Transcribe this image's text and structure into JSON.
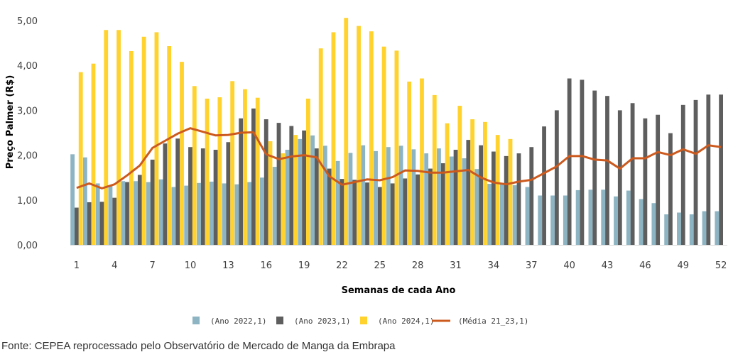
{
  "chart_data": {
    "type": "bar",
    "xlabel": "Semanas de cada Ano",
    "ylabel": "Preço Palmer (R$)",
    "ylim": [
      0,
      5
    ],
    "yticks": [
      "0,00",
      "1,00",
      "2,00",
      "3,00",
      "4,00",
      "5,00"
    ],
    "xticks": [
      "1",
      "4",
      "7",
      "10",
      "13",
      "16",
      "19",
      "22",
      "25",
      "28",
      "31",
      "34",
      "37",
      "40",
      "43",
      "46",
      "49",
      "52"
    ],
    "grid": false,
    "legend_position": "bottom",
    "colors": {
      "Ano 2022": "#8db4c2",
      "Ano 2023": "#5e5e5e",
      "Ano 2024": "#ffd22e",
      "Media": "#cc5a1e"
    },
    "x": [
      1,
      2,
      3,
      4,
      5,
      6,
      7,
      8,
      9,
      10,
      11,
      12,
      13,
      14,
      15,
      16,
      17,
      18,
      19,
      20,
      21,
      22,
      23,
      24,
      25,
      26,
      27,
      28,
      29,
      30,
      31,
      32,
      33,
      34,
      35,
      36,
      37,
      38,
      39,
      40,
      41,
      42,
      43,
      44,
      45,
      46,
      47,
      48,
      49,
      50,
      51,
      52
    ],
    "series": [
      {
        "name": "(Ano 2022,1)",
        "type": "bar",
        "values": [
          2.02,
          1.95,
          1.37,
          1.33,
          1.42,
          1.42,
          1.4,
          1.46,
          1.29,
          1.32,
          1.38,
          1.41,
          1.37,
          1.35,
          1.4,
          1.5,
          1.74,
          2.12,
          2.36,
          2.44,
          2.21,
          1.87,
          2.05,
          2.22,
          2.09,
          2.18,
          2.21,
          2.13,
          2.04,
          2.15,
          1.97,
          1.93,
          1.69,
          1.36,
          1.37,
          1.33,
          1.29,
          1.1,
          1.1,
          1.1,
          1.22,
          1.23,
          1.23,
          1.08,
          1.21,
          1.02,
          0.93,
          0.68,
          0.72,
          0.68,
          0.75,
          0.75
        ]
      },
      {
        "name": "(Ano 2023,1)",
        "type": "bar",
        "values": [
          0.83,
          0.95,
          0.96,
          1.05,
          1.4,
          1.56,
          1.9,
          2.26,
          2.37,
          2.18,
          2.15,
          2.12,
          2.29,
          2.82,
          3.04,
          2.8,
          2.72,
          2.65,
          2.55,
          2.15,
          1.7,
          1.47,
          1.45,
          1.39,
          1.29,
          1.37,
          1.48,
          1.57,
          1.7,
          1.82,
          2.12,
          2.34,
          2.22,
          2.08,
          1.98,
          2.04,
          2.18,
          2.64,
          3.0,
          3.71,
          3.68,
          3.44,
          3.32,
          3.0,
          3.16,
          2.82,
          2.9,
          2.49,
          3.12,
          3.23,
          3.35,
          3.35
        ]
      },
      {
        "name": "(Ano 2024,1)",
        "type": "bar",
        "values": [
          3.85,
          4.04,
          4.79,
          4.79,
          4.32,
          4.64,
          4.74,
          4.43,
          4.08,
          3.54,
          3.26,
          3.29,
          3.65,
          3.47,
          3.28,
          2.31,
          2.04,
          2.45,
          3.26,
          4.38,
          4.74,
          5.06,
          4.88,
          4.76,
          4.42,
          4.33,
          3.64,
          3.71,
          3.34,
          2.71,
          3.1,
          2.8,
          2.74,
          2.45,
          2.36,
          null,
          null,
          null,
          null,
          null,
          null,
          null,
          null,
          null,
          null,
          null,
          null,
          null,
          null,
          null,
          null,
          null
        ]
      },
      {
        "name": "(Média 21_23,1)",
        "type": "line",
        "values": [
          1.27,
          1.37,
          1.26,
          1.35,
          1.55,
          1.77,
          2.16,
          2.32,
          2.48,
          2.6,
          2.52,
          2.44,
          2.45,
          2.5,
          2.51,
          2.02,
          1.91,
          1.97,
          2.0,
          1.95,
          1.53,
          1.34,
          1.4,
          1.46,
          1.44,
          1.51,
          1.66,
          1.65,
          1.61,
          1.61,
          1.64,
          1.67,
          1.5,
          1.39,
          1.35,
          1.41,
          1.45,
          1.6,
          1.75,
          1.98,
          1.98,
          1.9,
          1.88,
          1.7,
          1.93,
          1.93,
          2.07,
          2.0,
          2.13,
          2.03,
          2.22,
          2.18
        ]
      }
    ]
  },
  "source_note": "Fonte: CEPEA reprocessado pelo Observatório de Mercado de Manga da Embrapa"
}
